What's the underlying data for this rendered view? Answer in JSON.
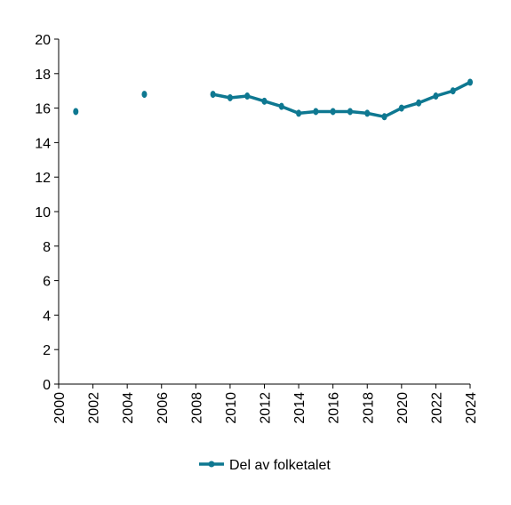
{
  "chart_data": {
    "type": "line",
    "title": "",
    "xlabel": "",
    "ylabel": "",
    "xlim": [
      2000,
      2024
    ],
    "ylim": [
      0,
      20
    ],
    "x_ticks": [
      "2000",
      "2002",
      "2004",
      "2006",
      "2008",
      "2010",
      "2012",
      "2014",
      "2016",
      "2018",
      "2020",
      "2022",
      "2024"
    ],
    "y_ticks": [
      "0",
      "2",
      "4",
      "6",
      "8",
      "10",
      "12",
      "14",
      "16",
      "18",
      "20"
    ],
    "grid": false,
    "legend_position": "bottom-center",
    "series": [
      {
        "name": "Del av folketalet",
        "color": "#0e7891",
        "points": [
          {
            "x": 2001,
            "y": 15.8
          },
          {
            "x": 2005,
            "y": 16.8
          },
          {
            "x": 2009,
            "y": 16.8
          },
          {
            "x": 2010,
            "y": 16.6
          },
          {
            "x": 2011,
            "y": 16.7
          },
          {
            "x": 2012,
            "y": 16.4
          },
          {
            "x": 2013,
            "y": 16.1
          },
          {
            "x": 2014,
            "y": 15.7
          },
          {
            "x": 2015,
            "y": 15.8
          },
          {
            "x": 2016,
            "y": 15.8
          },
          {
            "x": 2017,
            "y": 15.8
          },
          {
            "x": 2018,
            "y": 15.7
          },
          {
            "x": 2019,
            "y": 15.5
          },
          {
            "x": 2020,
            "y": 16.0
          },
          {
            "x": 2021,
            "y": 16.3
          },
          {
            "x": 2022,
            "y": 16.7
          },
          {
            "x": 2023,
            "y": 17.0
          },
          {
            "x": 2024,
            "y": 17.5
          }
        ]
      }
    ]
  }
}
